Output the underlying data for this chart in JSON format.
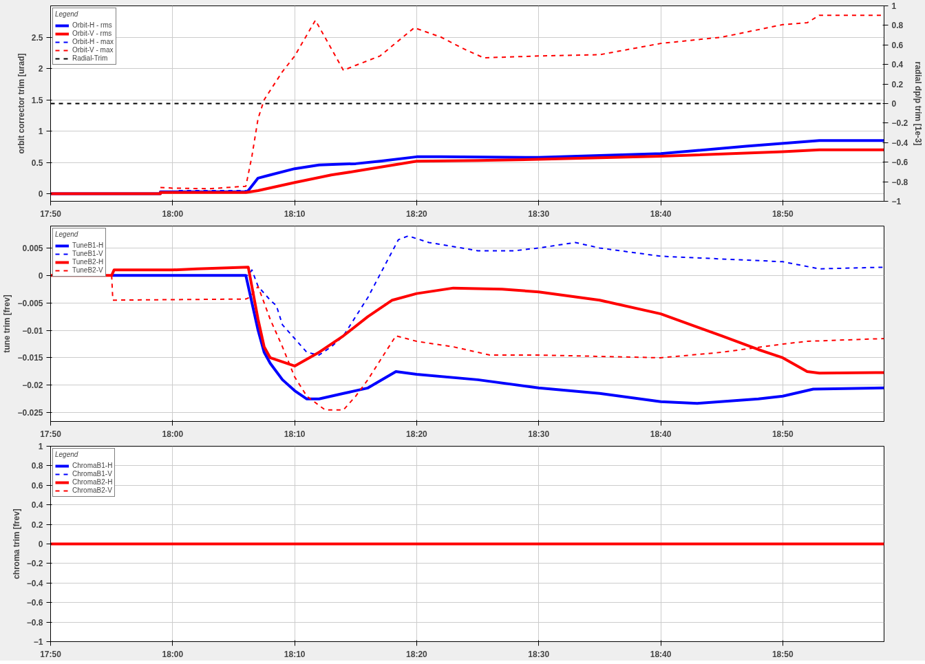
{
  "chart_data": [
    {
      "type": "line",
      "ylabel": "orbit corrector trim [urad]",
      "y2label": "radial dp/p trim [1e-3]",
      "legend_title": "Legend",
      "legend": "top left",
      "grid": true,
      "xlim": [
        17.8333,
        18.9717
      ],
      "xticks": [
        {
          "value": 17.8333,
          "label": "17:50"
        },
        {
          "value": 18.0,
          "label": "18:00"
        },
        {
          "value": 18.1667,
          "label": "18:10"
        },
        {
          "value": 18.3333,
          "label": "18:20"
        },
        {
          "value": 18.5,
          "label": "18:30"
        },
        {
          "value": 18.6667,
          "label": "18:40"
        },
        {
          "value": 18.8333,
          "label": "18:50"
        }
      ],
      "ylim": [
        -0.12,
        3.0
      ],
      "yticks": [
        0,
        0.5,
        1,
        1.5,
        2,
        2.5
      ],
      "y2lim": [
        -1,
        1
      ],
      "y2ticks": [
        -1,
        -0.8,
        -0.6,
        -0.4,
        -0.2,
        0,
        0.2,
        0.4,
        0.6,
        0.8,
        1
      ],
      "series": [
        {
          "name": "Orbit-H - rms",
          "color": "#0000ff",
          "line_style": "solid",
          "x": [
            17.8333,
            17.9833,
            17.9833,
            18.1,
            18.1033,
            18.1167,
            18.1333,
            18.1667,
            18.2,
            18.25,
            18.2833,
            18.3333,
            18.3667,
            18.5,
            18.6667,
            18.7833,
            18.8833,
            18.9717
          ],
          "values": [
            0,
            0,
            0.03,
            0.03,
            0.05,
            0.25,
            0.3,
            0.4,
            0.46,
            0.48,
            0.52,
            0.59,
            0.59,
            0.58,
            0.64,
            0.76,
            0.85,
            0.85
          ]
        },
        {
          "name": "Orbit-V - rms",
          "color": "#ff0000",
          "line_style": "solid",
          "x": [
            17.8333,
            17.9833,
            17.9833,
            18.1,
            18.1167,
            18.1667,
            18.2167,
            18.25,
            18.3333,
            18.4167,
            18.5,
            18.6667,
            18.8333,
            18.8833,
            18.9717
          ],
          "values": [
            0,
            0,
            0.02,
            0.02,
            0.05,
            0.18,
            0.3,
            0.36,
            0.52,
            0.53,
            0.55,
            0.6,
            0.67,
            0.7,
            0.7
          ]
        },
        {
          "name": "Orbit-H - max",
          "color": "#0000ff",
          "line_style": "dashed",
          "x": [
            18.0083,
            18.1
          ],
          "values": [
            0.05,
            0.05
          ]
        },
        {
          "name": "Orbit-V - max",
          "color": "#ff0000",
          "line_style": "dashed",
          "x": [
            17.9833,
            18.0,
            18.05,
            18.1,
            18.1083,
            18.1167,
            18.125,
            18.1333,
            18.15,
            18.1667,
            18.195,
            18.2333,
            18.25,
            18.2833,
            18.33,
            18.3667,
            18.4,
            18.425,
            18.5,
            18.5833,
            18.6667,
            18.75,
            18.8333,
            18.8667,
            18.8833,
            18.9717
          ],
          "values": [
            0.1,
            0.09,
            0.08,
            0.12,
            0.6,
            1.2,
            1.5,
            1.65,
            1.95,
            2.2,
            2.77,
            1.97,
            2.05,
            2.2,
            2.65,
            2.5,
            2.3,
            2.17,
            2.2,
            2.22,
            2.4,
            2.5,
            2.7,
            2.73,
            2.85,
            2.85
          ]
        },
        {
          "name": "Radial-Trim",
          "color": "#000000",
          "line_style": "dashed",
          "axis": "y2",
          "x": [
            17.8333,
            18.9717
          ],
          "values": [
            0,
            0
          ]
        }
      ]
    },
    {
      "type": "line",
      "ylabel": "tune trim [frev]",
      "legend_title": "Legend",
      "legend": "top left",
      "grid": true,
      "xlim": [
        17.8333,
        18.9717
      ],
      "xticks": [
        {
          "value": 17.8333,
          "label": "17:50"
        },
        {
          "value": 18.0,
          "label": "18:00"
        },
        {
          "value": 18.1667,
          "label": "18:10"
        },
        {
          "value": 18.3333,
          "label": "18:20"
        },
        {
          "value": 18.5,
          "label": "18:30"
        },
        {
          "value": 18.6667,
          "label": "18:40"
        },
        {
          "value": 18.8333,
          "label": "18:50"
        }
      ],
      "ylim": [
        -0.0266,
        0.009
      ],
      "yticks": [
        -0.025,
        -0.02,
        -0.015,
        -0.01,
        -0.005,
        0,
        0.005
      ],
      "series": [
        {
          "name": "TuneB1-H",
          "color": "#0000ff",
          "line_style": "solid",
          "x": [
            17.9167,
            18.1,
            18.1167,
            18.125,
            18.1333,
            18.15,
            18.1667,
            18.1833,
            18.2,
            18.2333,
            18.2667,
            18.305,
            18.3333,
            18.4167,
            18.5,
            18.5833,
            18.6667,
            18.7167,
            18.8,
            18.8333,
            18.875,
            18.9717
          ],
          "values": [
            0,
            0,
            -0.01,
            -0.014,
            -0.016,
            -0.019,
            -0.021,
            -0.0225,
            -0.0225,
            -0.0215,
            -0.0205,
            -0.0175,
            -0.018,
            -0.019,
            -0.0205,
            -0.0215,
            -0.023,
            -0.0233,
            -0.0225,
            -0.022,
            -0.0207,
            -0.0205
          ]
        },
        {
          "name": "TuneB1-V",
          "color": "#0000ff",
          "line_style": "dashed",
          "x": [
            17.9167,
            18.1033,
            18.1083,
            18.1167,
            18.1333,
            18.1417,
            18.15,
            18.1667,
            18.1833,
            18.2,
            18.2167,
            18.2333,
            18.2667,
            18.3083,
            18.3217,
            18.35,
            18.4167,
            18.4667,
            18.5,
            18.55,
            18.5833,
            18.6667,
            18.75,
            18.8333,
            18.8833,
            18.9717
          ],
          "values": [
            0,
            0,
            0.001,
            -0.002,
            -0.0045,
            -0.0055,
            -0.009,
            -0.0115,
            -0.014,
            -0.0145,
            -0.013,
            -0.011,
            -0.004,
            0.0065,
            0.0072,
            0.006,
            0.0045,
            0.0045,
            0.005,
            0.006,
            0.005,
            0.0035,
            0.003,
            0.0025,
            0.0012,
            0.0015
          ]
        },
        {
          "name": "TuneB2-H",
          "color": "#ff0000",
          "line_style": "solid",
          "x": [
            17.8333,
            17.9167,
            17.92,
            18.0,
            18.0333,
            18.1033,
            18.1167,
            18.125,
            18.1333,
            18.1667,
            18.2,
            18.2333,
            18.2667,
            18.3,
            18.3333,
            18.3833,
            18.45,
            18.5,
            18.5833,
            18.6667,
            18.75,
            18.8,
            18.8333,
            18.8667,
            18.8833,
            18.9717
          ],
          "values": [
            0,
            0,
            0.001,
            0.001,
            0.0012,
            0.0015,
            -0.008,
            -0.013,
            -0.015,
            -0.0165,
            -0.014,
            -0.011,
            -0.0075,
            -0.0045,
            -0.0033,
            -0.0023,
            -0.0025,
            -0.003,
            -0.0045,
            -0.007,
            -0.011,
            -0.0135,
            -0.015,
            -0.0175,
            -0.0178,
            -0.0177
          ]
        },
        {
          "name": "TuneB2-V",
          "color": "#ff0000",
          "line_style": "dashed",
          "x": [
            17.9167,
            17.9183,
            18.1,
            18.105,
            18.1167,
            18.1333,
            18.15,
            18.1667,
            18.1833,
            18.2083,
            18.2333,
            18.25,
            18.2667,
            18.2833,
            18.305,
            18.3333,
            18.3833,
            18.4333,
            18.5,
            18.6667,
            18.75,
            18.8333,
            18.8667,
            18.9717
          ],
          "values": [
            0,
            -0.0045,
            -0.0043,
            -0.004,
            -0.002,
            -0.008,
            -0.013,
            -0.0185,
            -0.022,
            -0.0245,
            -0.0245,
            -0.022,
            -0.019,
            -0.0155,
            -0.011,
            -0.012,
            -0.013,
            -0.0145,
            -0.0145,
            -0.015,
            -0.014,
            -0.0125,
            -0.012,
            -0.0115
          ]
        }
      ]
    },
    {
      "type": "line",
      "ylabel": "chroma trim [frev]",
      "legend_title": "Legend",
      "legend": "top left",
      "grid": true,
      "xlim": [
        17.8333,
        18.9717
      ],
      "xticks": [
        {
          "value": 17.8333,
          "label": "17:50"
        },
        {
          "value": 18.0,
          "label": "18:00"
        },
        {
          "value": 18.1667,
          "label": "18:10"
        },
        {
          "value": 18.3333,
          "label": "18:20"
        },
        {
          "value": 18.5,
          "label": "18:30"
        },
        {
          "value": 18.6667,
          "label": "18:40"
        },
        {
          "value": 18.8333,
          "label": "18:50"
        }
      ],
      "ylim": [
        -1,
        1
      ],
      "yticks": [
        -1,
        -0.8,
        -0.6,
        -0.4,
        -0.2,
        0,
        0.2,
        0.4,
        0.6,
        0.8,
        1
      ],
      "series": [
        {
          "name": "ChromaB1-H",
          "color": "#0000ff",
          "line_style": "solid"
        },
        {
          "name": "ChromaB1-V",
          "color": "#0000ff",
          "line_style": "dashed"
        },
        {
          "name": "ChromaB2-H",
          "color": "#ff0000",
          "line_style": "solid",
          "x": [
            17.8333,
            18.9717
          ],
          "values": [
            0,
            0
          ]
        },
        {
          "name": "ChromaB2-V",
          "color": "#ff0000",
          "line_style": "dashed"
        }
      ]
    }
  ]
}
